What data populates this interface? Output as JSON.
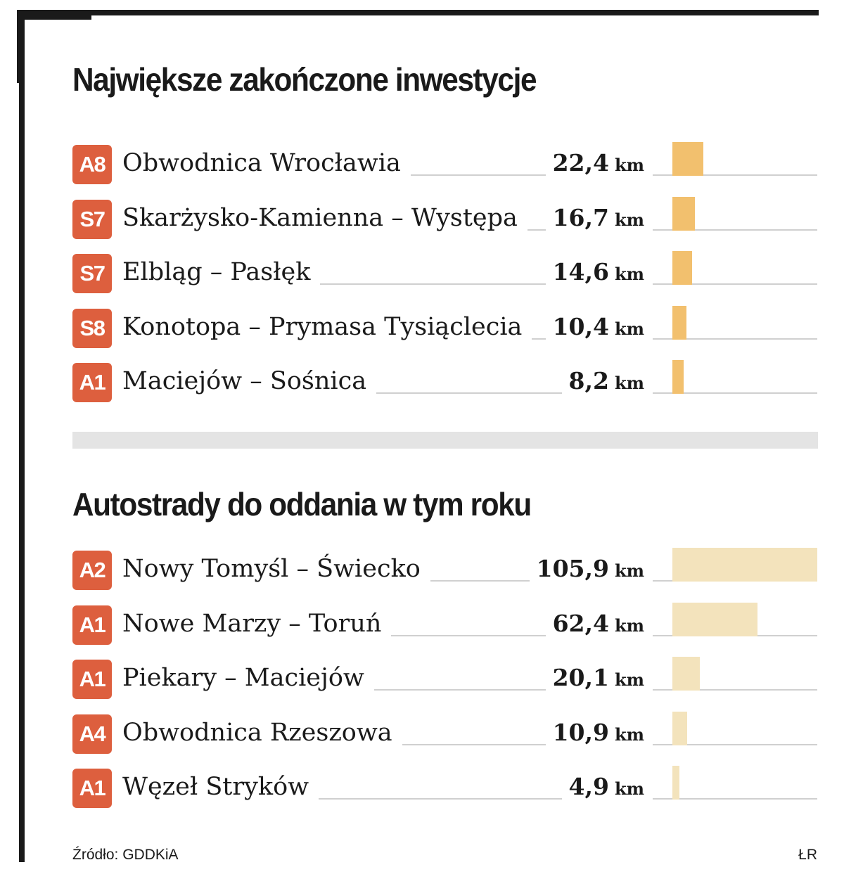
{
  "colors": {
    "badge": "#dd5f3e",
    "bar_completed": "#f2c06e",
    "bar_planned": "#f3e3bc",
    "frame": "#1a1a1a",
    "divider": "#e4e4e4"
  },
  "chart_data": [
    {
      "type": "bar",
      "orientation": "horizontal",
      "title": "Największe zakończone inwestycje",
      "unit": "km",
      "categories": [
        "Obwodnica Wrocławia",
        "Skarżysko-Kamienna – Występa",
        "Elbląg – Pasłęk",
        "Konotopa – Prymasa Tysiąclecia",
        "Maciejów – Sośnica"
      ],
      "values": [
        22.4,
        16.7,
        14.6,
        10.4,
        8.2
      ],
      "rows": [
        {
          "road": "A8",
          "route": "Obwodnica Wrocławia",
          "value": 22.4,
          "value_label": "22,4",
          "unit": "km"
        },
        {
          "road": "S7",
          "route": "Skarżysko-Kamienna – Występa",
          "value": 16.7,
          "value_label": "16,7",
          "unit": "km"
        },
        {
          "road": "S7",
          "route": "Elbląg – Pasłęk",
          "value": 14.6,
          "value_label": "14,6",
          "unit": "km"
        },
        {
          "road": "S8",
          "route": "Konotopa – Prymasa Tysiąclecia",
          "value": 10.4,
          "value_label": "10,4",
          "unit": "km"
        },
        {
          "road": "A1",
          "route": "Maciejów – Sośnica",
          "value": 8.2,
          "value_label": "8,2",
          "unit": "km"
        }
      ]
    },
    {
      "type": "bar",
      "orientation": "horizontal",
      "title": "Autostrady do oddania w tym roku",
      "unit": "km",
      "categories": [
        "Nowy Tomyśl – Świecko",
        "Nowe Marzy – Toruń",
        "Piekary – Maciejów",
        "Obwodnica Rzeszowa",
        "Węzeł Stryków"
      ],
      "values": [
        105.9,
        62.4,
        20.1,
        10.9,
        4.9
      ],
      "rows": [
        {
          "road": "A2",
          "route": "Nowy Tomyśl – Świecko",
          "value": 105.9,
          "value_label": "105,9",
          "unit": "km"
        },
        {
          "road": "A1",
          "route": "Nowe Marzy – Toruń",
          "value": 62.4,
          "value_label": "62,4",
          "unit": "km"
        },
        {
          "road": "A1",
          "route": "Piekary – Maciejów",
          "value": 20.1,
          "value_label": "20,1",
          "unit": "km"
        },
        {
          "road": "A4",
          "route": "Obwodnica Rzeszowa",
          "value": 10.9,
          "value_label": "10,9",
          "unit": "km"
        },
        {
          "road": "A1",
          "route": "Węzeł Stryków",
          "value": 4.9,
          "value_label": "4,9",
          "unit": "km"
        }
      ]
    }
  ],
  "footer": {
    "source": "Źródło: GDDKiA",
    "credit": "ŁR"
  }
}
